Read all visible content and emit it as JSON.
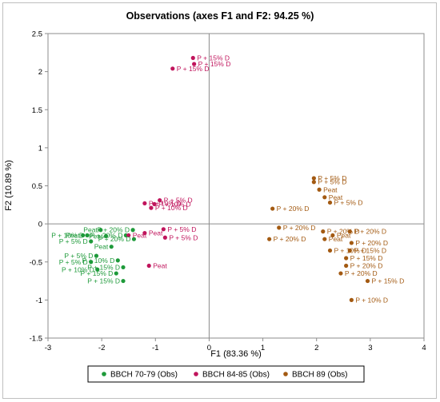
{
  "chart_data": {
    "type": "scatter",
    "title": "Observations (axes F1 and F2: 94.25 %)",
    "xlabel": "F1 (83.36 %)",
    "ylabel": "F2 (10.89 %)",
    "xlim": [
      -3,
      4
    ],
    "ylim": [
      -1.5,
      2.5
    ],
    "x_ticks": [
      "-3",
      "-2",
      "-1",
      "0",
      "1",
      "2",
      "3",
      "4"
    ],
    "y_ticks": [
      "-1.5",
      "-1",
      "-0.5",
      "0",
      "0.5",
      "1",
      "1.5",
      "2",
      "2.5"
    ],
    "grid": false,
    "legend_position": "bottom",
    "series": [
      {
        "name": "BBCH 70-79 (Obs)",
        "color": "#1e9a3a",
        "points": [
          {
            "x": -2.35,
            "y": -0.15,
            "label": "Peat"
          },
          {
            "x": -2.27,
            "y": -0.15,
            "label": "P + 10% D"
          },
          {
            "x": -2.2,
            "y": -0.23,
            "label": "P + 5% D"
          },
          {
            "x": -2.02,
            "y": -0.08,
            "label": "Peat"
          },
          {
            "x": -1.92,
            "y": -0.16,
            "label": "Peat"
          },
          {
            "x": -1.82,
            "y": -0.3,
            "label": "Peat"
          },
          {
            "x": -1.55,
            "y": -0.15,
            "label": "P + 20% D"
          },
          {
            "x": -1.42,
            "y": -0.08,
            "label": "P + 20% D"
          },
          {
            "x": -1.4,
            "y": -0.2,
            "label": "P + 20% D"
          },
          {
            "x": -2.1,
            "y": -0.42,
            "label": "P + 5% D"
          },
          {
            "x": -2.2,
            "y": -0.5,
            "label": "P + 5% D"
          },
          {
            "x": -2.08,
            "y": -0.6,
            "label": "P + 10% D"
          },
          {
            "x": -1.7,
            "y": -0.48,
            "label": "P + 10% D"
          },
          {
            "x": -1.6,
            "y": -0.57,
            "label": "P + 15% D"
          },
          {
            "x": -1.73,
            "y": -0.65,
            "label": "P + 15% D"
          },
          {
            "x": -1.6,
            "y": -0.75,
            "label": "P + 15% D"
          }
        ]
      },
      {
        "name": "BBCH 84-85 (Obs)",
        "color": "#c0145c",
        "points": [
          {
            "x": -0.3,
            "y": 2.18,
            "label": "P + 15% D"
          },
          {
            "x": -0.28,
            "y": 2.1,
            "label": "P + 15% D"
          },
          {
            "x": -0.68,
            "y": 2.04,
            "label": "P + 15% D"
          },
          {
            "x": -1.2,
            "y": 0.27,
            "label": "P + 10% D"
          },
          {
            "x": -1.08,
            "y": 0.21,
            "label": "P + 10% D"
          },
          {
            "x": -1.02,
            "y": 0.26,
            "label": "P + 10% D"
          },
          {
            "x": -0.92,
            "y": 0.31,
            "label": "P + 5% D"
          },
          {
            "x": -1.2,
            "y": -0.12,
            "label": "Peat"
          },
          {
            "x": -1.5,
            "y": -0.15,
            "label": "Peat"
          },
          {
            "x": -0.85,
            "y": -0.07,
            "label": "P + 5% D"
          },
          {
            "x": -0.82,
            "y": -0.18,
            "label": "P + 5% D"
          },
          {
            "x": -1.12,
            "y": -0.55,
            "label": "Peat"
          }
        ]
      },
      {
        "name": "BBCH 89 (Obs)",
        "color": "#a35a12",
        "points": [
          {
            "x": 1.95,
            "y": 0.6,
            "label": "P + 5% D"
          },
          {
            "x": 1.95,
            "y": 0.55,
            "label": "P + 5% D"
          },
          {
            "x": 2.05,
            "y": 0.45,
            "label": "Peat"
          },
          {
            "x": 2.15,
            "y": 0.35,
            "label": "Peat"
          },
          {
            "x": 2.25,
            "y": 0.28,
            "label": "P + 5% D"
          },
          {
            "x": 1.18,
            "y": 0.2,
            "label": "P + 20% D"
          },
          {
            "x": 1.3,
            "y": -0.05,
            "label": "P + 20% D"
          },
          {
            "x": 1.12,
            "y": -0.2,
            "label": "P + 20% D"
          },
          {
            "x": 2.12,
            "y": -0.1,
            "label": "P + 20% D"
          },
          {
            "x": 2.62,
            "y": -0.1,
            "label": "P + 20% D"
          },
          {
            "x": 2.3,
            "y": -0.15,
            "label": "Peat"
          },
          {
            "x": 2.15,
            "y": -0.2,
            "label": "Peat"
          },
          {
            "x": 2.25,
            "y": -0.35,
            "label": "P + 10% D"
          },
          {
            "x": 2.65,
            "y": -0.25,
            "label": "P + 20% D"
          },
          {
            "x": 2.62,
            "y": -0.35,
            "label": "P + 15% D"
          },
          {
            "x": 2.55,
            "y": -0.45,
            "label": "P + 15% D"
          },
          {
            "x": 2.55,
            "y": -0.55,
            "label": "P + 20% D"
          },
          {
            "x": 2.45,
            "y": -0.65,
            "label": "P + 20% D"
          },
          {
            "x": 2.95,
            "y": -0.75,
            "label": "P + 15% D"
          },
          {
            "x": 2.65,
            "y": -1.0,
            "label": "P + 10% D"
          }
        ]
      }
    ]
  }
}
